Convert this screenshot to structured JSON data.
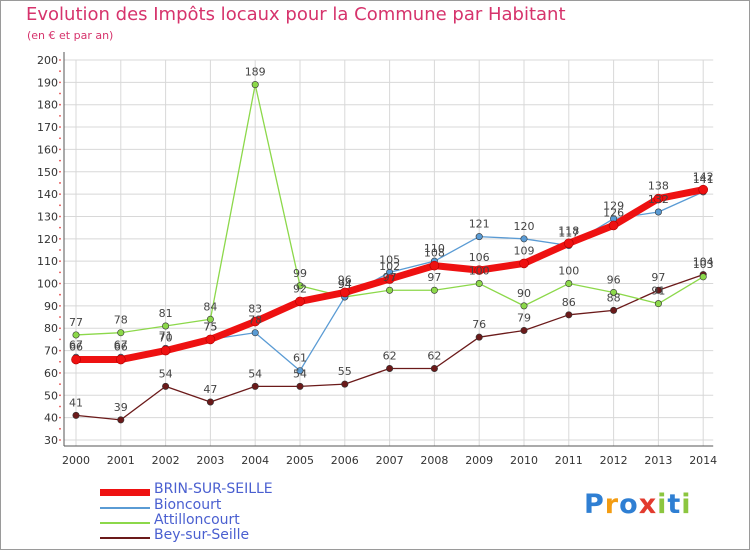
{
  "header": {
    "title": "Evolution des Impôts locaux pour la Commune par Habitant",
    "subtitle": "(en € et par an)"
  },
  "logo": {
    "text": "Proxiti",
    "letters": [
      "P",
      "r",
      "o",
      "x",
      "i",
      "t",
      "i"
    ],
    "colors": [
      "#2f7fd3",
      "#f39c12",
      "#2f7fd3",
      "#e23b2e",
      "#8cc63f",
      "#2f7fd3",
      "#8cc63f"
    ]
  },
  "colors": {
    "brin": "#ee1111",
    "bioncourt": "#5a9bd4",
    "attilloncourt": "#8cd84a",
    "bey": "#6b1a1a",
    "grid": "#d8d8d8",
    "axis": "#555555"
  },
  "chart_data": {
    "type": "line",
    "title": "Evolution des Impôts locaux pour la Commune par Habitant",
    "subtitle": "(en € et par an)",
    "xlabel": "",
    "ylabel": "",
    "ylim": [
      30,
      200
    ],
    "yticks": [
      30,
      40,
      50,
      60,
      70,
      80,
      90,
      100,
      110,
      120,
      130,
      140,
      150,
      160,
      170,
      180,
      190,
      200
    ],
    "categories": [
      "2000",
      "2001",
      "2002",
      "2003",
      "2004",
      "2005",
      "2006",
      "2007",
      "2008",
      "2009",
      "2010",
      "2011",
      "2012",
      "2013",
      "2014"
    ],
    "series": [
      {
        "name": "BRIN-SUR-SEILLE",
        "key": "brin",
        "values": [
          66,
          66,
          70,
          75,
          83,
          92,
          96,
          102,
          108,
          106,
          109,
          118,
          126,
          138,
          142
        ],
        "labels": [
          "66",
          "66",
          "70",
          "75",
          "83",
          "92",
          "96",
          "102",
          "108",
          "106",
          "109",
          "118",
          "126",
          "138",
          "142"
        ]
      },
      {
        "name": "Bioncourt",
        "key": "bioncourt",
        "values": [
          67,
          67,
          71,
          75,
          78,
          61,
          94,
          105,
          110,
          121,
          120,
          117,
          129,
          132,
          141
        ],
        "labels": [
          "67",
          "67",
          "71",
          "75",
          "78",
          "61",
          "94",
          "105",
          "110",
          "121",
          "120",
          "117",
          "129",
          "132",
          "141"
        ]
      },
      {
        "name": "Attilloncourt",
        "key": "attilloncourt",
        "values": [
          77,
          78,
          81,
          84,
          189,
          99,
          94,
          97,
          97,
          100,
          90,
          100,
          96,
          91,
          103
        ],
        "labels": [
          "77",
          "78",
          "81",
          "84",
          "189",
          "99",
          "94",
          "97",
          "97",
          "100",
          "90",
          "100",
          "96",
          "91",
          "103"
        ]
      },
      {
        "name": "Bey-sur-Seille",
        "key": "bey",
        "values": [
          41,
          39,
          54,
          47,
          54,
          54,
          55,
          62,
          62,
          76,
          79,
          86,
          88,
          97,
          104
        ],
        "labels": [
          "41",
          "39",
          "54",
          "47",
          "54",
          "54",
          "55",
          "62",
          "62",
          "76",
          "79",
          "86",
          "88",
          "97",
          "104"
        ]
      }
    ],
    "legend": {
      "position": "bottom-left"
    }
  }
}
